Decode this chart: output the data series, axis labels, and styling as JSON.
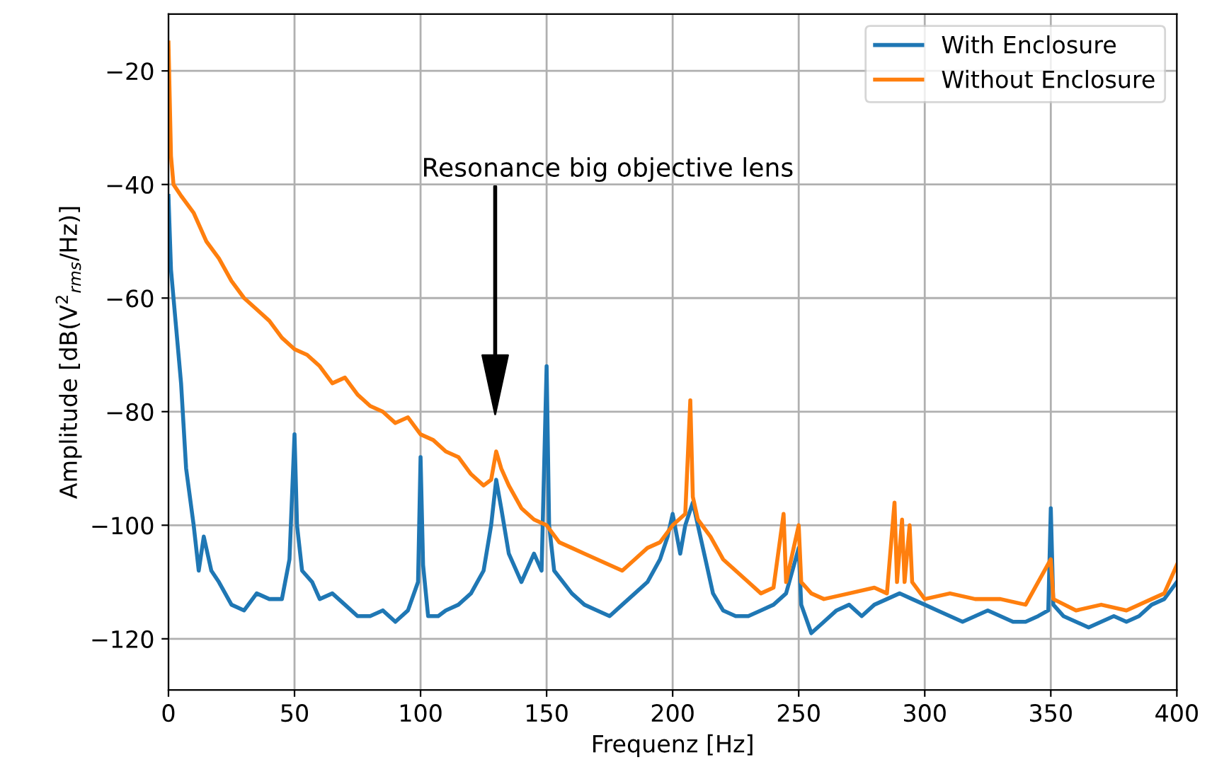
{
  "chart_data": {
    "type": "line",
    "xlabel": "Frequenz [Hz]",
    "ylabel": "Amplitude [dB(V$^{2}$$_{rms}$/Hz)]",
    "xlim": [
      0,
      400
    ],
    "xticks": [
      0,
      50,
      100,
      150,
      200,
      250,
      300,
      350,
      400
    ],
    "ylim": [
      -129,
      -10
    ],
    "yticks": [
      -120,
      -100,
      -80,
      -60,
      -40,
      -20
    ],
    "grid": true,
    "legend": "top right",
    "marker": "none",
    "line_style": "solid",
    "annotations": [
      "Resonance big objective lens"
    ],
    "series": [
      {
        "name": "With Enclosure",
        "color": "#1f77b4",
        "x": [
          0,
          1,
          3,
          5,
          7,
          10,
          12,
          14,
          17,
          20,
          25,
          30,
          35,
          40,
          45,
          48,
          50,
          51,
          53,
          57,
          60,
          65,
          70,
          75,
          80,
          85,
          90,
          95,
          99,
          100,
          101,
          103,
          107,
          110,
          115,
          120,
          125,
          128,
          130,
          132,
          135,
          140,
          145,
          148,
          150,
          151,
          153,
          160,
          165,
          170,
          175,
          180,
          185,
          190,
          195,
          198,
          200,
          203,
          205,
          208,
          210,
          213,
          216,
          220,
          225,
          230,
          235,
          240,
          245,
          250,
          251,
          255,
          260,
          265,
          270,
          275,
          280,
          285,
          290,
          295,
          300,
          305,
          310,
          315,
          320,
          325,
          330,
          335,
          340,
          345,
          349,
          350,
          351,
          355,
          360,
          365,
          370,
          375,
          380,
          385,
          390,
          395,
          400
        ],
        "values": [
          -42,
          -55,
          -65,
          -75,
          -90,
          -100,
          -108,
          -102,
          -108,
          -110,
          -114,
          -115,
          -112,
          -113,
          -113,
          -106,
          -84,
          -100,
          -108,
          -110,
          -113,
          -112,
          -114,
          -116,
          -116,
          -115,
          -117,
          -115,
          -110,
          -88,
          -107,
          -116,
          -116,
          -115,
          -114,
          -112,
          -108,
          -100,
          -92,
          -97,
          -105,
          -110,
          -105,
          -108,
          -72,
          -100,
          -108,
          -112,
          -114,
          -115,
          -116,
          -114,
          -112,
          -110,
          -106,
          -102,
          -98,
          -105,
          -100,
          -96,
          -100,
          -106,
          -112,
          -115,
          -116,
          -116,
          -115,
          -114,
          -112,
          -104,
          -114,
          -119,
          -117,
          -115,
          -114,
          -116,
          -114,
          -113,
          -112,
          -113,
          -114,
          -115,
          -116,
          -117,
          -116,
          -115,
          -116,
          -117,
          -117,
          -116,
          -115,
          -97,
          -114,
          -116,
          -117,
          -118,
          -117,
          -116,
          -117,
          -116,
          -114,
          -113,
          -110
        ]
      },
      {
        "name": "Without Enclosure",
        "color": "#ff7f0e",
        "x": [
          0,
          1,
          2,
          5,
          10,
          15,
          20,
          25,
          30,
          35,
          40,
          45,
          50,
          55,
          60,
          65,
          70,
          75,
          80,
          85,
          90,
          95,
          100,
          105,
          110,
          115,
          120,
          125,
          128,
          130,
          132,
          135,
          140,
          145,
          150,
          155,
          160,
          165,
          170,
          175,
          180,
          185,
          190,
          195,
          200,
          205,
          207,
          208,
          210,
          215,
          220,
          225,
          230,
          235,
          240,
          244,
          245,
          250,
          251,
          255,
          260,
          270,
          280,
          285,
          288,
          289,
          291,
          292,
          294,
          295,
          300,
          310,
          320,
          330,
          340,
          350,
          351,
          360,
          370,
          380,
          390,
          395,
          400
        ],
        "values": [
          -15,
          -35,
          -40,
          -42,
          -45,
          -50,
          -53,
          -57,
          -60,
          -62,
          -64,
          -67,
          -69,
          -70,
          -72,
          -75,
          -74,
          -77,
          -79,
          -80,
          -82,
          -81,
          -84,
          -85,
          -87,
          -88,
          -91,
          -93,
          -92,
          -87,
          -90,
          -93,
          -97,
          -99,
          -100,
          -103,
          -104,
          -105,
          -106,
          -107,
          -108,
          -106,
          -104,
          -103,
          -100,
          -98,
          -78,
          -95,
          -99,
          -102,
          -106,
          -108,
          -110,
          -112,
          -111,
          -98,
          -110,
          -100,
          -110,
          -112,
          -113,
          -112,
          -111,
          -112,
          -96,
          -110,
          -99,
          -110,
          -100,
          -110,
          -113,
          -112,
          -113,
          -113,
          -114,
          -106,
          -113,
          -115,
          -114,
          -115,
          -113,
          -112,
          -107
        ]
      }
    ]
  }
}
